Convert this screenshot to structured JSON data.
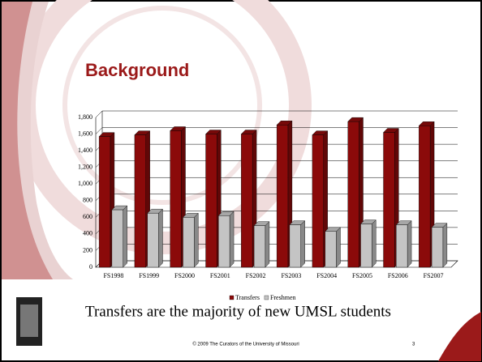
{
  "slide": {
    "caption": "Transfers are the majority of new UMSL students",
    "footer": "© 2009 The Curators of the University of Missouri",
    "page_number": "3"
  },
  "chart_data": {
    "type": "bar",
    "title": "Background",
    "categories": [
      "FS1998",
      "FS1999",
      "FS2000",
      "FS2001",
      "FS2002",
      "FS2003",
      "FS2004",
      "FS2005",
      "FS2006",
      "FS2007"
    ],
    "series": [
      {
        "name": "Transfers",
        "color": "#8b0a0a",
        "values": [
          1570,
          1590,
          1640,
          1600,
          1600,
          1710,
          1590,
          1750,
          1620,
          1700
        ]
      },
      {
        "name": "Freshmen",
        "color": "#c4c4c4",
        "values": [
          690,
          650,
          600,
          620,
          500,
          510,
          430,
          520,
          510,
          480
        ]
      }
    ],
    "ylim": [
      0,
      1800
    ],
    "yticks": [
      0,
      200,
      400,
      600,
      800,
      {
        "value": 1000,
        "label": "1,000"
      },
      {
        "value": 1200,
        "label": "1,200"
      },
      {
        "value": 1400,
        "label": "1,400"
      },
      {
        "value": 1600,
        "label": "1,600"
      },
      {
        "value": 1800,
        "label": "1,800"
      }
    ],
    "grid": true,
    "legend": "bottom"
  }
}
